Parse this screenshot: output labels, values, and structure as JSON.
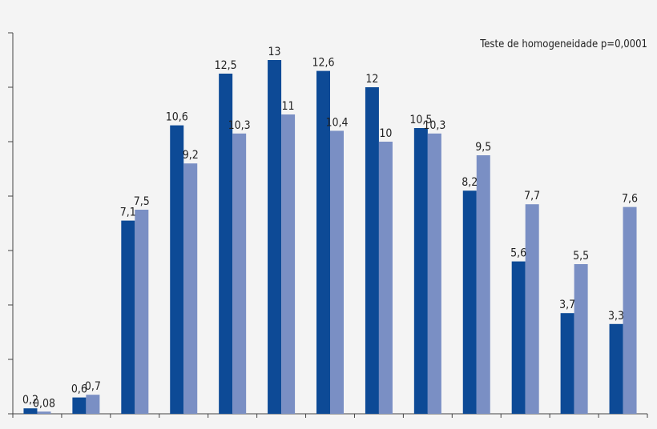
{
  "chart_data": {
    "type": "bar",
    "title": "",
    "xlabel": "",
    "ylabel": "",
    "annotation": "Teste de homogeneidade p=0,0001",
    "ylim": [
      0,
      14
    ],
    "grid": false,
    "legend": "none",
    "colors": {
      "series1": "#0d4a96",
      "series2": "#7a8fc4",
      "axis": "#444444",
      "background": "#f4f4f4"
    },
    "categories": [
      "",
      "",
      "",
      "",
      "",
      "",
      "",
      "",
      "",
      "",
      "",
      "",
      ""
    ],
    "series": [
      {
        "values": [
          0.2,
          0.6,
          7.1,
          10.6,
          12.5,
          13,
          12.6,
          12,
          10.5,
          8.2,
          5.6,
          3.7,
          3.3
        ],
        "labels": [
          "0,2",
          "0,6",
          "7,1",
          "10,6",
          "12,5",
          "13",
          "12,6",
          "12",
          "10,5",
          "8,2",
          "5,6",
          "3,7",
          "3,3"
        ]
      },
      {
        "values": [
          0.08,
          0.7,
          7.5,
          9.2,
          10.3,
          11,
          10.4,
          10,
          10.3,
          9.5,
          7.7,
          5.5,
          7.6
        ],
        "labels": [
          "0,08",
          "0,7",
          "7,5",
          "9,2",
          "10,3",
          "11",
          "10,4",
          "10",
          "10,3",
          "9,5",
          "7,7",
          "5,5",
          "7,6"
        ]
      }
    ]
  }
}
